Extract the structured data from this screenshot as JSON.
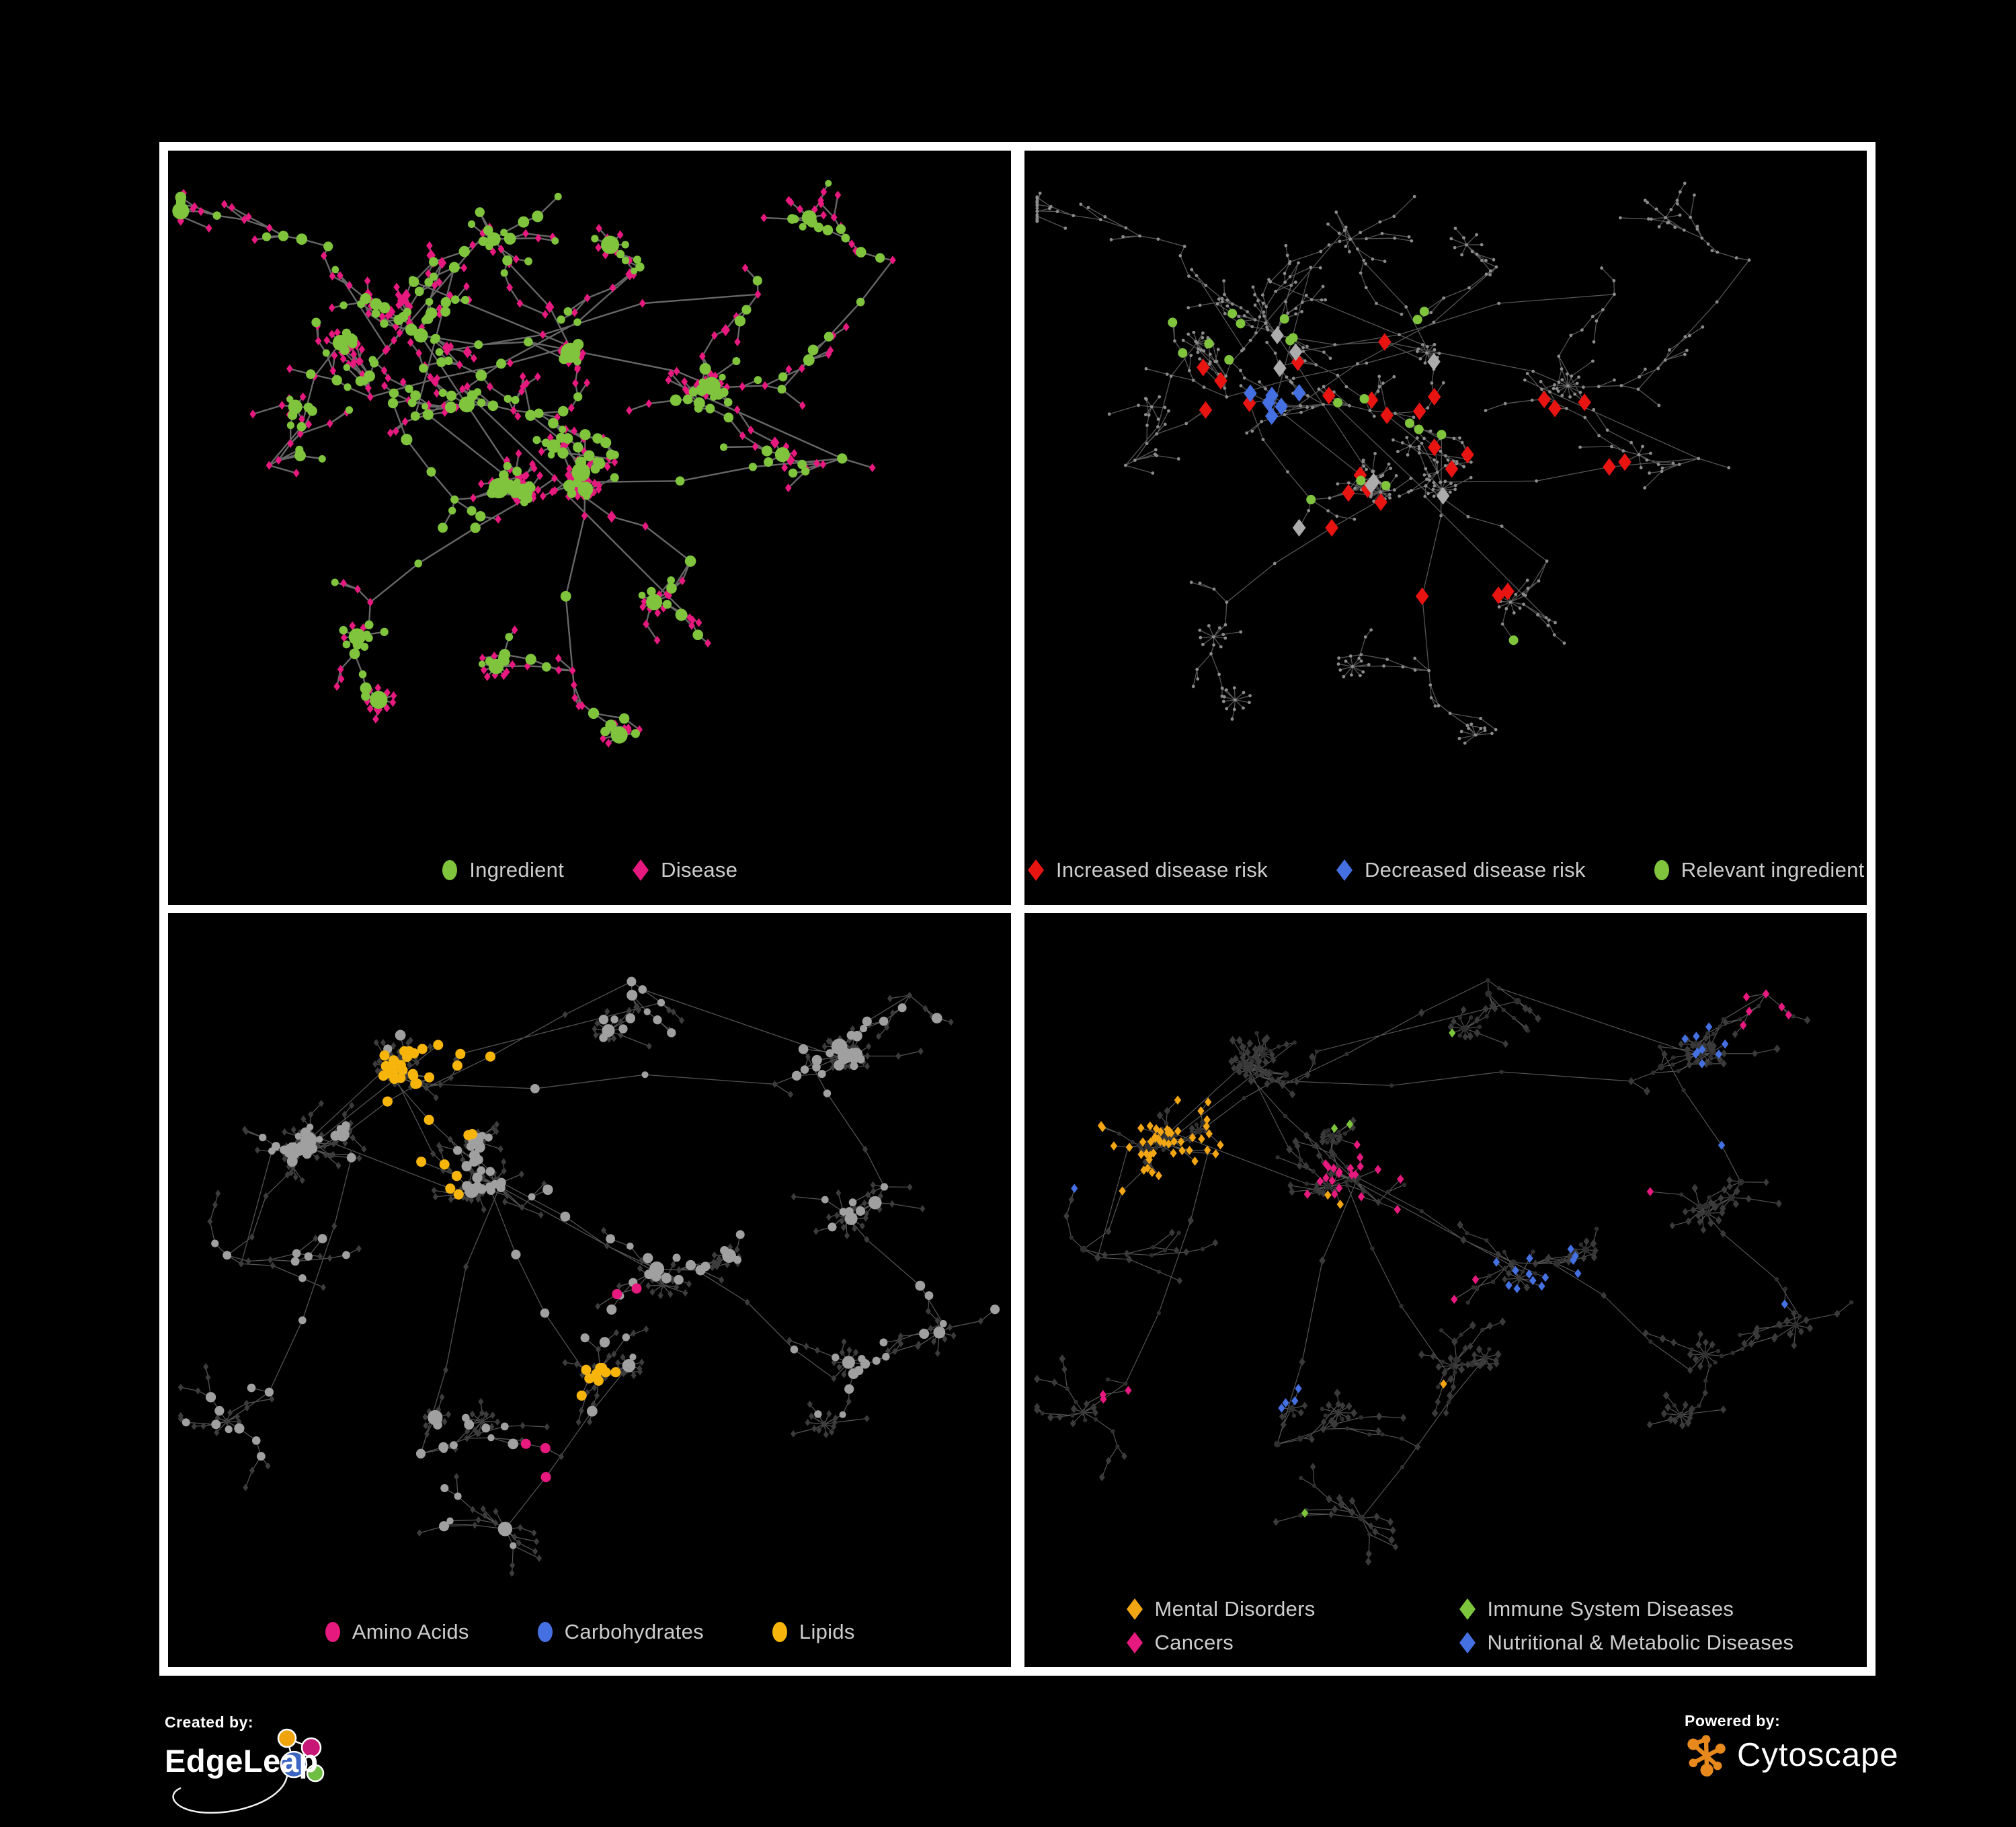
{
  "page": {
    "background": "#000000",
    "frame_color": "#ffffff"
  },
  "branding": {
    "created_by": "Created by:",
    "brand": "EdgeLeap",
    "powered_by": "Powered by:",
    "engine": "Cytoscape",
    "cytoscape_orange": "#E8891D",
    "edgeleap_logo_colors": {
      "orange": "#EFA30C",
      "magenta": "#C81678",
      "blue": "#3D66C4",
      "green": "#6FBE44"
    }
  },
  "layouts": {
    "A": {
      "seed": 7,
      "cross": 14,
      "parents": [
        0,
        0,
        0,
        0,
        1,
        0,
        2,
        0,
        8,
        4,
        4,
        3,
        4,
        0
      ],
      "clusters": [
        [
          0.41,
          0.38,
          95,
          0.021,
          0.55,
          0.05
        ],
        [
          0.3,
          0.27,
          70,
          0.02,
          0.65,
          0.04
        ],
        [
          0.24,
          0.36,
          50,
          0.022,
          0.55,
          0.05
        ],
        [
          0.34,
          0.51,
          55,
          0.022,
          0.5,
          0.06
        ],
        [
          0.49,
          0.47,
          50,
          0.022,
          0.5,
          0.05
        ],
        [
          0.19,
          0.14,
          35,
          0.03,
          0.35,
          0.03
        ],
        [
          0.37,
          0.09,
          30,
          0.028,
          0.35,
          0.04
        ],
        [
          0.12,
          0.46,
          25,
          0.028,
          0.4,
          0.04
        ],
        [
          0.7,
          0.21,
          45,
          0.026,
          0.45,
          0.06
        ],
        [
          0.86,
          0.16,
          28,
          0.026,
          0.4,
          0.05
        ],
        [
          0.8,
          0.45,
          35,
          0.027,
          0.45,
          0.06
        ],
        [
          0.48,
          0.76,
          40,
          0.026,
          0.5,
          0.1
        ],
        [
          0.24,
          0.66,
          35,
          0.026,
          0.45,
          0.05
        ],
        [
          0.62,
          0.6,
          25,
          0.026,
          0.45,
          0.05
        ],
        [
          0.56,
          0.17,
          22,
          0.026,
          0.4,
          0.04
        ]
      ]
    },
    "B": {
      "seed": 13,
      "cross": 10,
      "parents": [
        0,
        1,
        2,
        2,
        1,
        5,
        3,
        2,
        0,
        1,
        5,
        6,
        4,
        0
      ],
      "clusters": [
        [
          0.15,
          0.34,
          85,
          0.018,
          0.75,
          0.08
        ],
        [
          0.31,
          0.24,
          75,
          0.019,
          0.7,
          0.06
        ],
        [
          0.42,
          0.43,
          85,
          0.02,
          0.7,
          0.07
        ],
        [
          0.58,
          0.52,
          55,
          0.022,
          0.6,
          0.09
        ],
        [
          0.5,
          0.68,
          45,
          0.022,
          0.55,
          0.12
        ],
        [
          0.72,
          0.25,
          40,
          0.026,
          0.5,
          0.06
        ],
        [
          0.85,
          0.4,
          35,
          0.026,
          0.5,
          0.07
        ],
        [
          0.79,
          0.68,
          40,
          0.026,
          0.5,
          0.07
        ],
        [
          0.3,
          0.79,
          40,
          0.026,
          0.5,
          0.06
        ],
        [
          0.12,
          0.7,
          30,
          0.028,
          0.45,
          0.05
        ],
        [
          0.55,
          0.1,
          30,
          0.026,
          0.45,
          0.05
        ],
        [
          0.88,
          0.12,
          26,
          0.024,
          0.5,
          0.06
        ],
        [
          0.92,
          0.6,
          20,
          0.026,
          0.45,
          0.05
        ],
        [
          0.4,
          0.9,
          25,
          0.026,
          0.45,
          0.06
        ],
        [
          0.07,
          0.5,
          20,
          0.028,
          0.4,
          0.04
        ]
      ]
    }
  },
  "panels": [
    {
      "name": "ingredient-disease-network",
      "layout": "A",
      "legend": {
        "columns": 1,
        "items": [
          {
            "shape": "ellipse",
            "color": "#7FC43C",
            "label": "Ingredient"
          },
          {
            "shape": "diamond",
            "color": "#E6197F",
            "label": "Disease"
          }
        ]
      },
      "style": {
        "mode": "ingredient_disease",
        "edge": {
          "color": "#757575",
          "width": 2.4,
          "opacity": 0.88
        },
        "ingredient_color": "#7FC43C",
        "disease_color": "#E6197F"
      }
    },
    {
      "name": "disease-risk-network",
      "layout": "A",
      "legend": {
        "columns": 1,
        "items": [
          {
            "shape": "diamond",
            "color": "#E81411",
            "label": "Increased disease risk"
          },
          {
            "shape": "diamond",
            "color": "#4470E2",
            "label": "Decreased disease risk"
          },
          {
            "shape": "ellipse",
            "color": "#7FC43C",
            "label": "Relevant ingredient"
          }
        ]
      },
      "style": {
        "mode": "risk",
        "edge": {
          "color": "#5E5E5E",
          "width": 1.3,
          "opacity": 0.9
        },
        "base": {
          "color": "#8C8C8C",
          "r": 2.4
        },
        "highlights": [
          {
            "name": "increased-risk",
            "shape": "diamond",
            "color": "#E81411",
            "size": 13,
            "foci": [
              [
                0.45,
                0.42,
                0.17,
                12
              ],
              [
                0.28,
                0.35,
                0.08,
                4
              ],
              [
                0.63,
                0.46,
                0.1,
                5
              ],
              [
                0.73,
                0.74,
                0.07,
                3
              ],
              [
                0.52,
                0.62,
                0.06,
                3
              ],
              [
                0.4,
                0.55,
                0.06,
                3
              ]
            ]
          },
          {
            "name": "decreased-risk",
            "shape": "diamond",
            "color": "#4470E2",
            "size": 13,
            "foci": [
              [
                0.29,
                0.41,
                0.07,
                6
              ],
              [
                0.88,
                0.3,
                0.05,
                3
              ]
            ]
          },
          {
            "name": "relevant-ingredient",
            "shape": "circle",
            "color": "#7FC43C",
            "size": 7,
            "foci": [
              [
                0.44,
                0.4,
                0.18,
                12
              ],
              [
                0.3,
                0.32,
                0.1,
                5
              ],
              [
                0.77,
                0.6,
                0.09,
                3
              ],
              [
                0.2,
                0.3,
                0.06,
                2
              ],
              [
                0.55,
                0.75,
                0.06,
                2
              ]
            ]
          },
          {
            "name": "neutral",
            "shape": "diamond",
            "color": "#ACACAC",
            "size": 13,
            "foci": [
              [
                0.42,
                0.45,
                0.22,
                7
              ],
              [
                0.3,
                0.33,
                0.05,
                1
              ]
            ]
          }
        ]
      }
    },
    {
      "name": "nutrient-class-network",
      "layout": "B",
      "legend": {
        "columns": 1,
        "items": [
          {
            "shape": "ellipse",
            "color": "#E6197F",
            "label": "Amino Acids"
          },
          {
            "shape": "ellipse",
            "color": "#4470E2",
            "label": "Carbohydrates"
          },
          {
            "shape": "ellipse",
            "color": "#F7B50C",
            "label": "Lipids"
          }
        ]
      },
      "style": {
        "mode": "classes_circle",
        "edge": {
          "color": "#979797",
          "width": 1.3,
          "opacity": 0.55
        },
        "base": {
          "circle": "#A0A0A0",
          "diamond": "#3C3C3C"
        },
        "foci": [
          {
            "color": "#F7B50C",
            "list": [
              [
                0.33,
                0.25,
                0.085,
                34
              ],
              [
                0.3,
                0.39,
                0.05,
                7
              ],
              [
                0.5,
                0.67,
                0.045,
                9
              ],
              [
                0.63,
                0.62,
                0.06,
                5
              ],
              [
                0.2,
                0.55,
                0.04,
                3
              ],
              [
                0.55,
                0.33,
                0.04,
                3
              ],
              [
                0.42,
                0.12,
                0.04,
                4
              ],
              [
                0.25,
                0.08,
                0.03,
                2
              ],
              [
                0.9,
                0.28,
                0.03,
                2
              ],
              [
                0.6,
                0.78,
                0.03,
                2
              ]
            ]
          },
          {
            "color": "#4470E2",
            "list": [
              [
                0.345,
                0.26,
                0.055,
                8
              ],
              [
                0.33,
                0.46,
                0.03,
                3
              ],
              [
                0.65,
                0.64,
                0.035,
                2
              ],
              [
                0.1,
                0.3,
                0.025,
                1
              ],
              [
                0.45,
                0.55,
                0.03,
                1
              ]
            ]
          },
          {
            "color": "#E6197F",
            "list": [
              [
                0.09,
                0.42,
                0.03,
                2
              ],
              [
                0.25,
                0.6,
                0.03,
                2
              ],
              [
                0.46,
                0.79,
                0.04,
                3
              ],
              [
                0.56,
                0.55,
                0.03,
                2
              ],
              [
                0.88,
                0.2,
                0.035,
                2
              ],
              [
                0.92,
                0.42,
                0.025,
                1
              ],
              [
                0.3,
                0.09,
                0.025,
                1
              ],
              [
                0.17,
                0.25,
                0.025,
                2
              ],
              [
                0.7,
                0.3,
                0.03,
                1
              ],
              [
                0.4,
                0.96,
                0.02,
                1
              ]
            ]
          }
        ]
      }
    },
    {
      "name": "disease-class-network",
      "layout": "B",
      "legend": {
        "columns": 2,
        "items": [
          {
            "shape": "diamond",
            "color": "#F2A614",
            "label": "Mental Disorders"
          },
          {
            "shape": "diamond",
            "color": "#7DC63B",
            "label": "Immune System Diseases"
          },
          {
            "shape": "diamond",
            "color": "#E6197F",
            "label": "Cancers"
          },
          {
            "shape": "diamond",
            "color": "#4470E2",
            "label": "Nutritional & Metabolic Diseases"
          }
        ]
      },
      "style": {
        "mode": "classes_diamond",
        "edge": {
          "color": "#6A6A6A",
          "width": 1.2,
          "opacity": 0.8
        },
        "base": {
          "circle": "#2F2F2F",
          "diamond": "#3A3A3A"
        },
        "foci": [
          {
            "color": "#F2A614",
            "list": [
              [
                0.14,
                0.33,
                0.105,
                48
              ],
              [
                0.3,
                0.12,
                0.05,
                6
              ],
              [
                0.07,
                0.55,
                0.035,
                3
              ],
              [
                0.47,
                0.7,
                0.03,
                2
              ],
              [
                0.36,
                0.44,
                0.03,
                2
              ],
              [
                0.6,
                0.3,
                0.02,
                1
              ]
            ]
          },
          {
            "color": "#E6197F",
            "list": [
              [
                0.42,
                0.43,
                0.09,
                22
              ],
              [
                0.5,
                0.57,
                0.05,
                6
              ],
              [
                0.88,
                0.13,
                0.05,
                6
              ],
              [
                0.13,
                0.72,
                0.04,
                3
              ],
              [
                0.6,
                0.9,
                0.03,
                2
              ],
              [
                0.75,
                0.4,
                0.02,
                1
              ],
              [
                0.95,
                0.35,
                0.02,
                1
              ]
            ]
          },
          {
            "color": "#4470E2",
            "list": [
              [
                0.6,
                0.53,
                0.07,
                13
              ],
              [
                0.78,
                0.17,
                0.07,
                9
              ],
              [
                0.86,
                0.35,
                0.05,
                7
              ],
              [
                0.3,
                0.7,
                0.04,
                4
              ],
              [
                0.9,
                0.55,
                0.04,
                3
              ],
              [
                0.55,
                0.06,
                0.035,
                3
              ],
              [
                0.35,
                0.55,
                0.03,
                3
              ],
              [
                0.07,
                0.4,
                0.025,
                2
              ],
              [
                0.68,
                0.75,
                0.03,
                2
              ],
              [
                0.25,
                0.3,
                0.03,
                2
              ],
              [
                0.95,
                0.75,
                0.02,
                1
              ],
              [
                0.45,
                0.3,
                0.02,
                2
              ]
            ]
          },
          {
            "color": "#7DC63B",
            "list": [
              [
                0.4,
                0.3,
                0.05,
                2
              ],
              [
                0.33,
                0.48,
                0.03,
                1
              ],
              [
                0.55,
                0.42,
                0.03,
                1
              ],
              [
                0.68,
                0.6,
                0.03,
                1
              ],
              [
                0.9,
                0.8,
                0.03,
                1
              ],
              [
                0.35,
                0.9,
                0.03,
                1
              ],
              [
                0.5,
                0.2,
                0.03,
                1
              ],
              [
                0.75,
                0.95,
                0.02,
                1
              ]
            ]
          }
        ]
      }
    }
  ]
}
